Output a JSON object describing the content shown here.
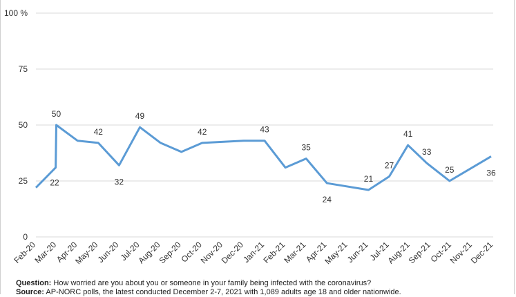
{
  "chart_data": {
    "type": "line",
    "x": [
      "Feb-20",
      "Mar-20",
      "Apr-20",
      "May-20",
      "Jun-20",
      "Jul-20",
      "Aug-20",
      "Sep-20",
      "Oct-20",
      "Nov-20",
      "Dec-20",
      "Jan-21",
      "Feb-21",
      "Mar-21",
      "Apr-21",
      "May-21",
      "Jun-21",
      "Jul-21",
      "Aug-21",
      "Sep-21",
      "Oct-21",
      "Nov-21",
      "Dec-21"
    ],
    "points": [
      {
        "x": 0.0,
        "y": 22,
        "label": "22"
      },
      {
        "x": 0.95,
        "y": 31
      },
      {
        "x": 0.98,
        "y": 50,
        "label": "50"
      },
      {
        "x": 2.0,
        "y": 43
      },
      {
        "x": 3.0,
        "y": 42,
        "label": "42"
      },
      {
        "x": 4.0,
        "y": 32,
        "label": "32"
      },
      {
        "x": 5.0,
        "y": 49,
        "label": "49"
      },
      {
        "x": 6.0,
        "y": 42
      },
      {
        "x": 7.0,
        "y": 38
      },
      {
        "x": 8.0,
        "y": 42,
        "label": "42"
      },
      {
        "x": 10.0,
        "y": 43
      },
      {
        "x": 11.0,
        "y": 43,
        "label": "43"
      },
      {
        "x": 12.0,
        "y": 31
      },
      {
        "x": 13.0,
        "y": 35,
        "label": "35"
      },
      {
        "x": 14.0,
        "y": 24,
        "label": "24"
      },
      {
        "x": 16.0,
        "y": 21,
        "label": "21"
      },
      {
        "x": 17.0,
        "y": 27,
        "label": "27"
      },
      {
        "x": 17.9,
        "y": 41,
        "label": "41"
      },
      {
        "x": 18.8,
        "y": 33,
        "label": "33"
      },
      {
        "x": 19.9,
        "y": 25,
        "label": "25"
      },
      {
        "x": 21.9,
        "y": 36,
        "label": "36"
      }
    ],
    "y_ticks": [
      0,
      25,
      50,
      75,
      100
    ],
    "y_tick_labels": [
      "0",
      "25",
      "50",
      "75",
      "100 %"
    ],
    "ylim": [
      0,
      100
    ],
    "grid": true,
    "line_color": "#5b9bd5",
    "grid_color": "#d9d9d9"
  },
  "caption": {
    "question_label": "Question:",
    "question_text": " How worried are you about you or someone in your family being infected with the coronavirus?",
    "source_label": "Source:",
    "source_text": "  AP-NORC polls, the latest conducted December 2-7, 2021 with 1,089 adults age 18 and older nationwide."
  }
}
